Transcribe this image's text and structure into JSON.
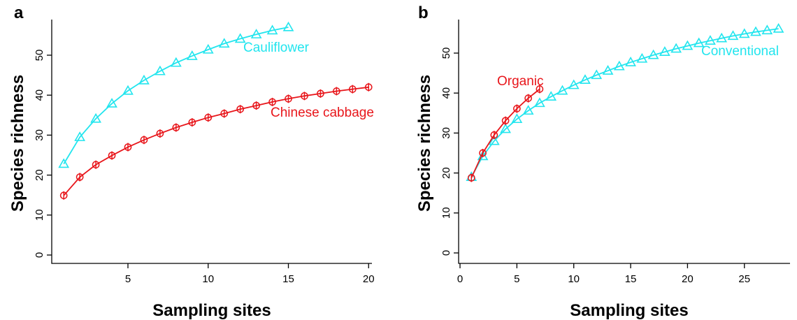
{
  "chart_data": [
    {
      "panel_label": "a",
      "type": "line",
      "xlabel": "Sampling sites",
      "ylabel": "Species richness",
      "xlim": [
        1,
        20
      ],
      "ylim": [
        0,
        57
      ],
      "xticks": [
        "5",
        "10",
        "15",
        "20"
      ],
      "yticks": [
        "0",
        "10",
        "20",
        "30",
        "40",
        "50"
      ],
      "series": [
        {
          "name": "Cauliflower",
          "color": "#22e5ee",
          "marker": "triangle",
          "x": [
            1,
            2,
            3,
            4,
            5,
            6,
            7,
            8,
            9,
            10,
            11,
            12,
            13,
            14,
            15
          ],
          "y": [
            22.8,
            29.5,
            34.1,
            37.9,
            41.1,
            43.7,
            46.0,
            48.1,
            49.8,
            51.4,
            52.9,
            54.1,
            55.2,
            56.2,
            57.0
          ]
        },
        {
          "name": "Chinese cabbage",
          "color": "#e8161b",
          "marker": "circle-plus",
          "x": [
            1,
            2,
            3,
            4,
            5,
            6,
            7,
            8,
            9,
            10,
            11,
            12,
            13,
            14,
            15,
            16,
            17,
            18,
            19,
            20
          ],
          "y": [
            14.9,
            19.5,
            22.6,
            24.9,
            27.0,
            28.8,
            30.4,
            31.9,
            33.2,
            34.4,
            35.4,
            36.5,
            37.4,
            38.3,
            39.1,
            39.8,
            40.4,
            41.0,
            41.5,
            42.0
          ]
        }
      ]
    },
    {
      "panel_label": "b",
      "type": "line",
      "xlabel": "Sampling sites",
      "ylabel": "Species richness",
      "xlim": [
        0,
        28
      ],
      "ylim": [
        0,
        56
      ],
      "xticks": [
        "0",
        "5",
        "10",
        "15",
        "20",
        "25"
      ],
      "yticks": [
        "0",
        "10",
        "20",
        "30",
        "40",
        "50"
      ],
      "series": [
        {
          "name": "Conventional",
          "color": "#22e5ee",
          "marker": "triangle",
          "x": [
            1,
            2,
            3,
            4,
            5,
            6,
            7,
            8,
            9,
            10,
            11,
            12,
            13,
            14,
            15,
            16,
            17,
            18,
            19,
            20,
            21,
            22,
            23,
            24,
            25,
            26,
            27,
            28
          ],
          "y": [
            19.0,
            24.2,
            28.0,
            31.0,
            33.5,
            35.6,
            37.5,
            39.1,
            40.6,
            42.0,
            43.3,
            44.5,
            45.6,
            46.7,
            47.7,
            48.6,
            49.5,
            50.3,
            51.1,
            51.8,
            52.5,
            53.1,
            53.7,
            54.3,
            54.8,
            55.3,
            55.7,
            56.1
          ]
        },
        {
          "name": "Organic",
          "color": "#e8161b",
          "marker": "circle-plus",
          "x": [
            1,
            2,
            3,
            4,
            5,
            6,
            7
          ],
          "y": [
            18.8,
            25.0,
            29.5,
            33.1,
            36.1,
            38.7,
            41.0
          ]
        }
      ]
    }
  ]
}
